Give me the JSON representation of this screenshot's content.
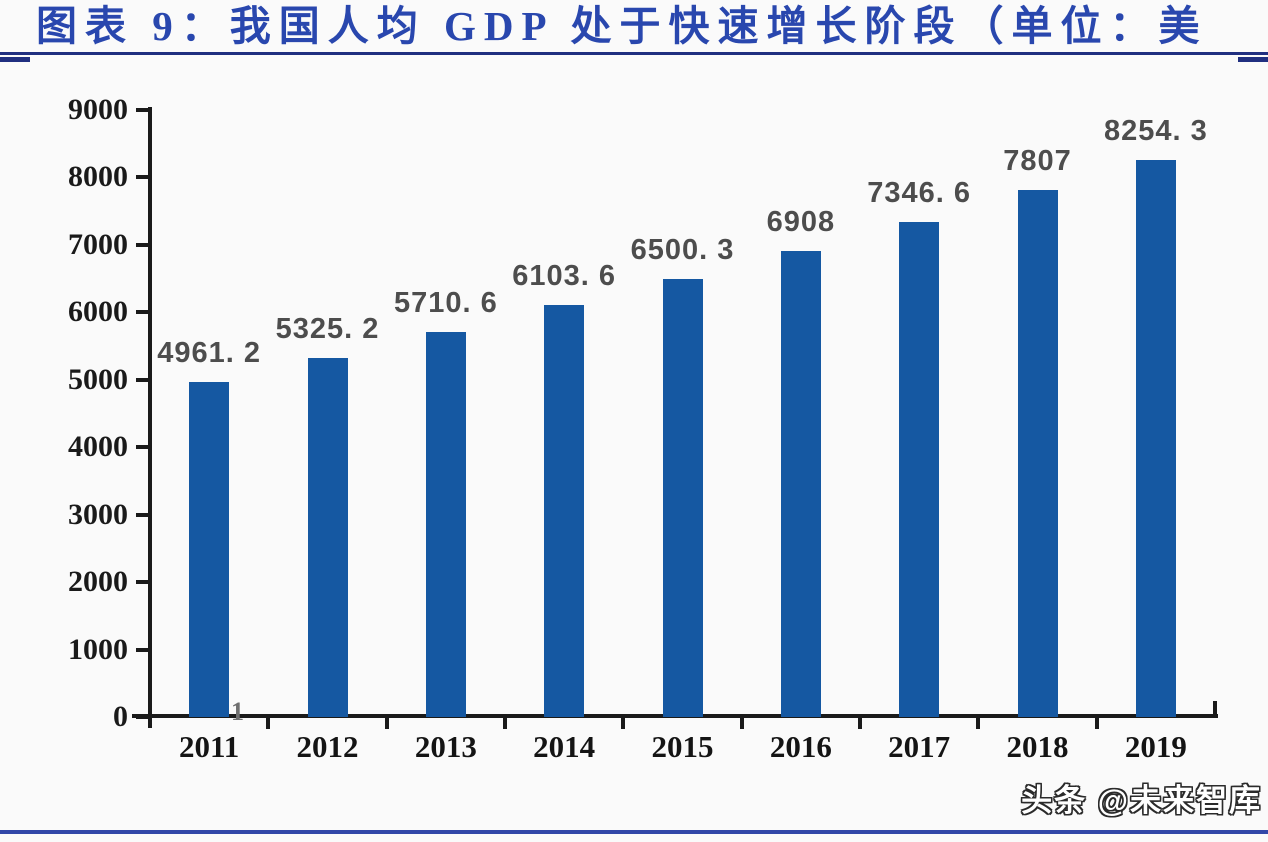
{
  "header": {
    "title": "图表 9：我国人均 GDP 处于快速增长阶段（单位：美",
    "title_color": "#2947ae",
    "rule_color": "#202f80"
  },
  "chart_data": {
    "type": "bar",
    "title": "图表 9：我国人均 GDP 处于快速增长阶段（单位：美",
    "categories": [
      "2011",
      "2012",
      "2013",
      "2014",
      "2015",
      "2016",
      "2017",
      "2018",
      "2019"
    ],
    "values": [
      4961.2,
      5325.2,
      5710.6,
      6103.6,
      6500.3,
      6908,
      7346.6,
      7807,
      8254.3
    ],
    "value_labels": [
      "4961. 2",
      "5325. 2",
      "5710. 6",
      "6103. 6",
      "6500. 3",
      "6908",
      "7346. 6",
      "7807",
      "8254. 3"
    ],
    "xlabel": "",
    "ylabel": "",
    "ylim": [
      0,
      9000
    ],
    "y_ticks": [
      0,
      1000,
      2000,
      3000,
      4000,
      5000,
      6000,
      7000,
      8000,
      9000
    ],
    "grid": false,
    "legend": "none",
    "bar_color": "#1558a2",
    "axis_color": "#1a1a1a",
    "tick_label_color": "#1a1a1a",
    "value_label_color": "#4d4d4d",
    "axis_artifact": "1"
  },
  "footer": {
    "watermark": "头条 @未来智库",
    "line_color": "#3247a8"
  }
}
